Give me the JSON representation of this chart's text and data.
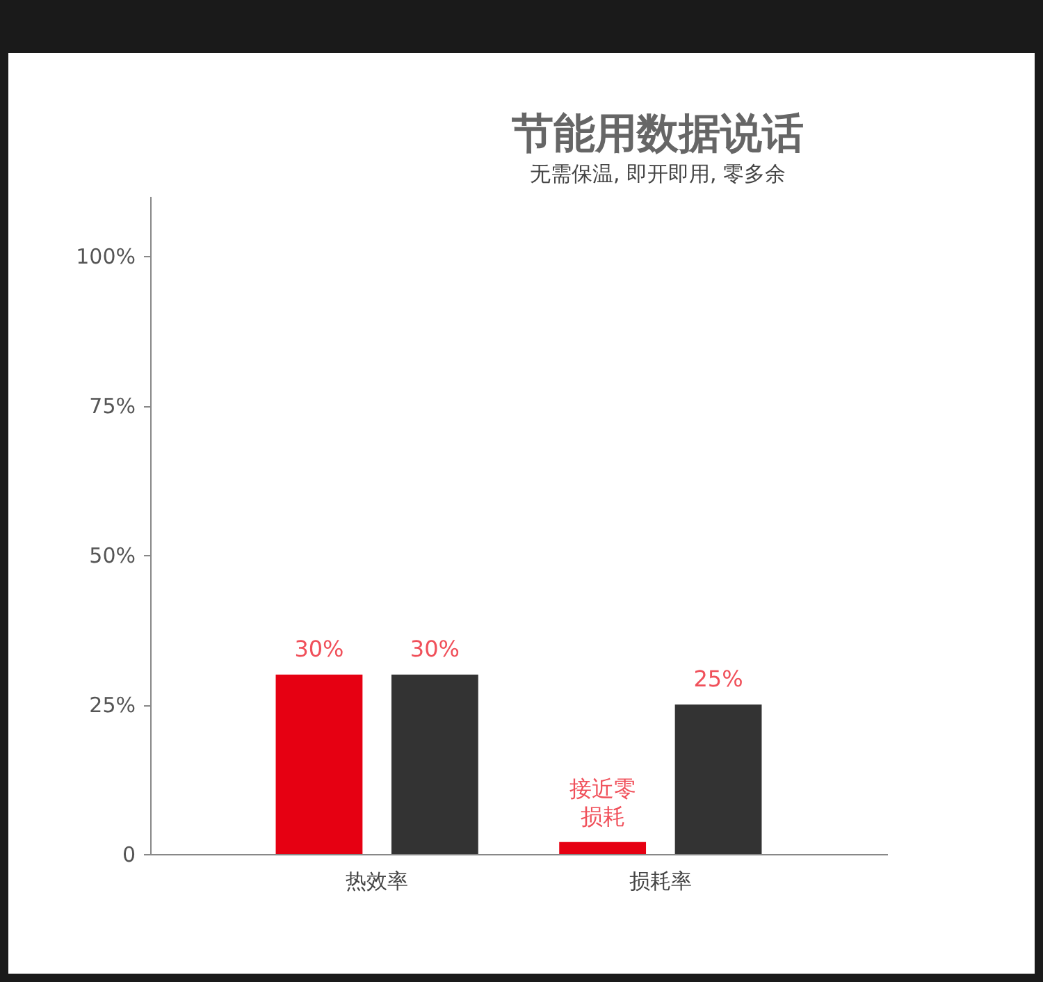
{
  "chart_data": {
    "type": "bar",
    "title": "节能用数据说话",
    "subtitle": "无需保温, 即开即用, 零多余",
    "categories": [
      "热效率",
      "损耗率"
    ],
    "series": [
      {
        "color": "#e60012",
        "values": [
          30,
          2
        ],
        "value_labels": [
          "30%",
          [
            "接近零",
            "损耗"
          ]
        ]
      },
      {
        "color": "#333333",
        "values": [
          30,
          25
        ],
        "value_labels": [
          "30%",
          "25%"
        ]
      }
    ],
    "ylim": [
      0,
      110
    ],
    "yticks": [
      0,
      {
        "value": 25,
        "label": "25%"
      },
      {
        "value": 50,
        "label": "50%"
      },
      {
        "value": 75,
        "label": "75%"
      },
      {
        "value": 100,
        "label": "100%"
      }
    ],
    "grid": false
  }
}
